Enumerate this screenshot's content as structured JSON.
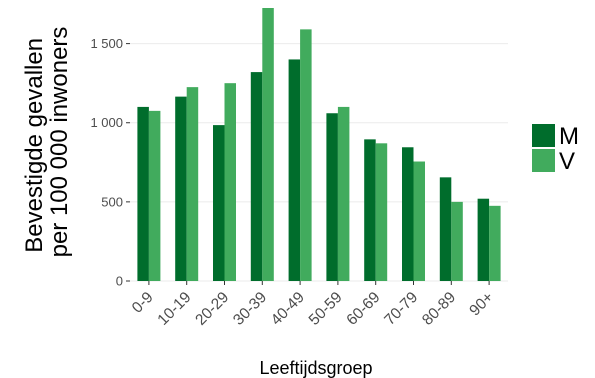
{
  "chart_data": {
    "type": "bar",
    "xlabel": "Leeftijdsgroep",
    "ylabel": [
      "Bevestigde gevallen",
      "per 100 000 inwoners"
    ],
    "categories": [
      "0-9",
      "10-19",
      "20-29",
      "30-39",
      "40-49",
      "50-59",
      "60-69",
      "70-79",
      "80-89",
      "90+"
    ],
    "series": [
      {
        "name": "M",
        "color": "#006d2c",
        "values": [
          1100,
          1165,
          985,
          1320,
          1400,
          1060,
          895,
          845,
          655,
          520
        ]
      },
      {
        "name": "V",
        "color": "#41ab5d",
        "values": [
          1075,
          1225,
          1250,
          1725,
          1590,
          1100,
          870,
          755,
          500,
          475
        ]
      }
    ],
    "yticks": [
      {
        "value": 0,
        "label": "0"
      },
      {
        "value": 500,
        "label": "500"
      },
      {
        "value": 1000,
        "label": "1 000"
      },
      {
        "value": 1500,
        "label": "1 500"
      }
    ],
    "ylim": [
      0,
      1725
    ],
    "grid": true,
    "legend_position": "right"
  }
}
